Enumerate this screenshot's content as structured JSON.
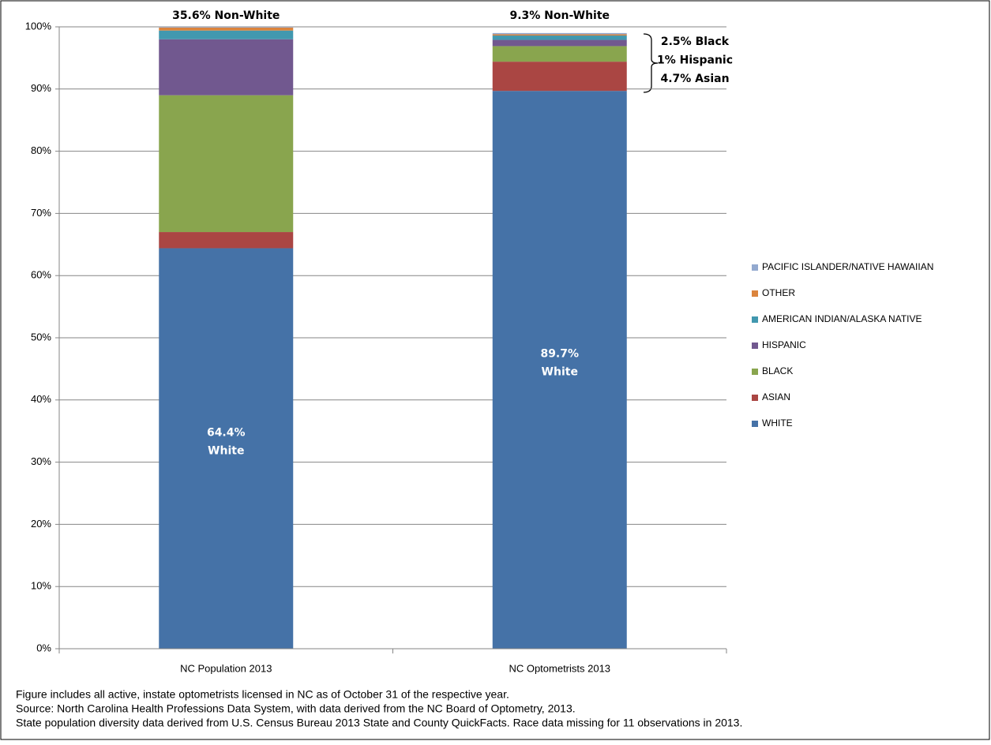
{
  "chart_data": {
    "type": "stacked-bar",
    "categories": [
      "NC Population 2013",
      "NC Optometrists 2013"
    ],
    "series": [
      {
        "name": "WHITE",
        "color": "#4572a7",
        "values": [
          64.4,
          89.7
        ],
        "value_labels": [
          "64.4%",
          "89.7%"
        ]
      },
      {
        "name": "ASIAN",
        "color": "#aa4643",
        "values": [
          2.6,
          4.7
        ]
      },
      {
        "name": "BLACK",
        "color": "#89a54e",
        "values": [
          22.0,
          2.5
        ]
      },
      {
        "name": "HISPANIC",
        "color": "#71588f",
        "values": [
          9.0,
          1.0
        ]
      },
      {
        "name": "AMERICAN INDIAN/ALASKA NATIVE",
        "color": "#4198af",
        "values": [
          1.4,
          0.7
        ]
      },
      {
        "name": "OTHER",
        "color": "#db843d",
        "values": [
          0.5,
          0.2
        ]
      },
      {
        "name": "PACIFIC ISLANDER/NATIVE HAWAIIAN",
        "color": "#93a9cf",
        "values": [
          0.1,
          0.2
        ]
      }
    ],
    "ylim": [
      0,
      100
    ],
    "yticks": [
      {
        "value": 0,
        "label": "0%"
      },
      {
        "value": 10,
        "label": "10%"
      },
      {
        "value": 20,
        "label": "20%"
      },
      {
        "value": 30,
        "label": "30%"
      },
      {
        "value": 40,
        "label": "40%"
      },
      {
        "value": 50,
        "label": "50%"
      },
      {
        "value": 60,
        "label": "60%"
      },
      {
        "value": 70,
        "label": "70%"
      },
      {
        "value": 80,
        "label": "80%"
      },
      {
        "value": 90,
        "label": "90%"
      },
      {
        "value": 100,
        "label": "100%"
      }
    ],
    "grid": true,
    "legend": "right",
    "bar_annotations": [
      {
        "top": "35.6% Non-White",
        "inner": "White"
      },
      {
        "top": "9.3% Non-White",
        "inner": "White",
        "side": [
          "2.5% Black",
          "1% Hispanic",
          "4.7% Asian"
        ]
      }
    ],
    "notes": [
      "Figure includes all active, instate optometrists licensed in NC as of October 31 of the respective year.",
      "Source: North Carolina Health Professions Data System, with data derived from the NC Board of Optometry, 2013.",
      "State population diversity data derived from U.S. Census Bureau 2013 State and County QuickFacts. Race data missing for 11 observations in 2013."
    ]
  }
}
